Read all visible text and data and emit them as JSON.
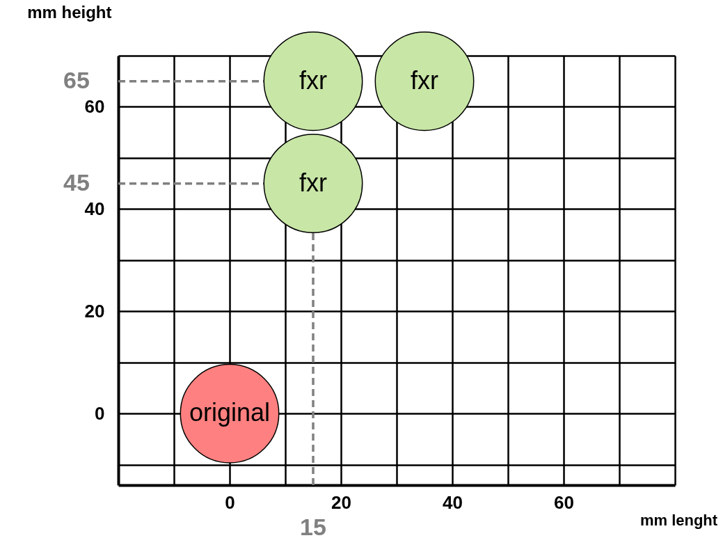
{
  "chart_data": {
    "type": "bubble",
    "xlabel": "mm lenght",
    "ylabel": "mm height",
    "x": [
      0,
      15,
      35,
      15
    ],
    "values": [
      0,
      65,
      65,
      45
    ],
    "sizes": [
      1,
      1,
      1,
      1
    ],
    "colors": [
      "#ff8080",
      "#c8e6a6",
      "#c8e6a6",
      "#c8e6a6"
    ],
    "xlim": [
      -20,
      80
    ],
    "ylim": [
      -14,
      70
    ],
    "xticks": [
      {
        "value": -10,
        "label": null
      },
      0,
      {
        "value": 10,
        "label": null
      },
      20,
      {
        "value": 30,
        "label": null
      },
      40,
      {
        "value": 50,
        "label": null
      },
      60,
      {
        "value": 70,
        "label": null
      },
      {
        "value": 80,
        "label": null
      }
    ],
    "yticks": [
      {
        "value": -10,
        "label": null
      },
      0,
      {
        "value": 10,
        "label": null
      },
      20,
      {
        "value": 30,
        "label": null
      },
      40,
      {
        "value": 50,
        "label": null
      },
      60,
      {
        "value": 70,
        "label": null
      }
    ],
    "grid": true,
    "ref_lines": [
      {
        "axis": "y",
        "value": 65,
        "label": "65",
        "color": "#808080",
        "line_style": "dashed"
      },
      {
        "axis": "y",
        "value": 45,
        "label": "45",
        "color": "#808080",
        "line_style": "dashed"
      },
      {
        "axis": "x",
        "value": 15,
        "label": "15",
        "color": "#808080",
        "line_style": "dashed"
      }
    ],
    "annotations": [
      {
        "text": "original",
        "x": 0,
        "y": 0
      },
      {
        "text": "fxr",
        "x": 15,
        "y": 65
      },
      {
        "text": "fxr",
        "x": 35,
        "y": 65
      },
      {
        "text": "fxr",
        "x": 15,
        "y": 45
      }
    ]
  }
}
